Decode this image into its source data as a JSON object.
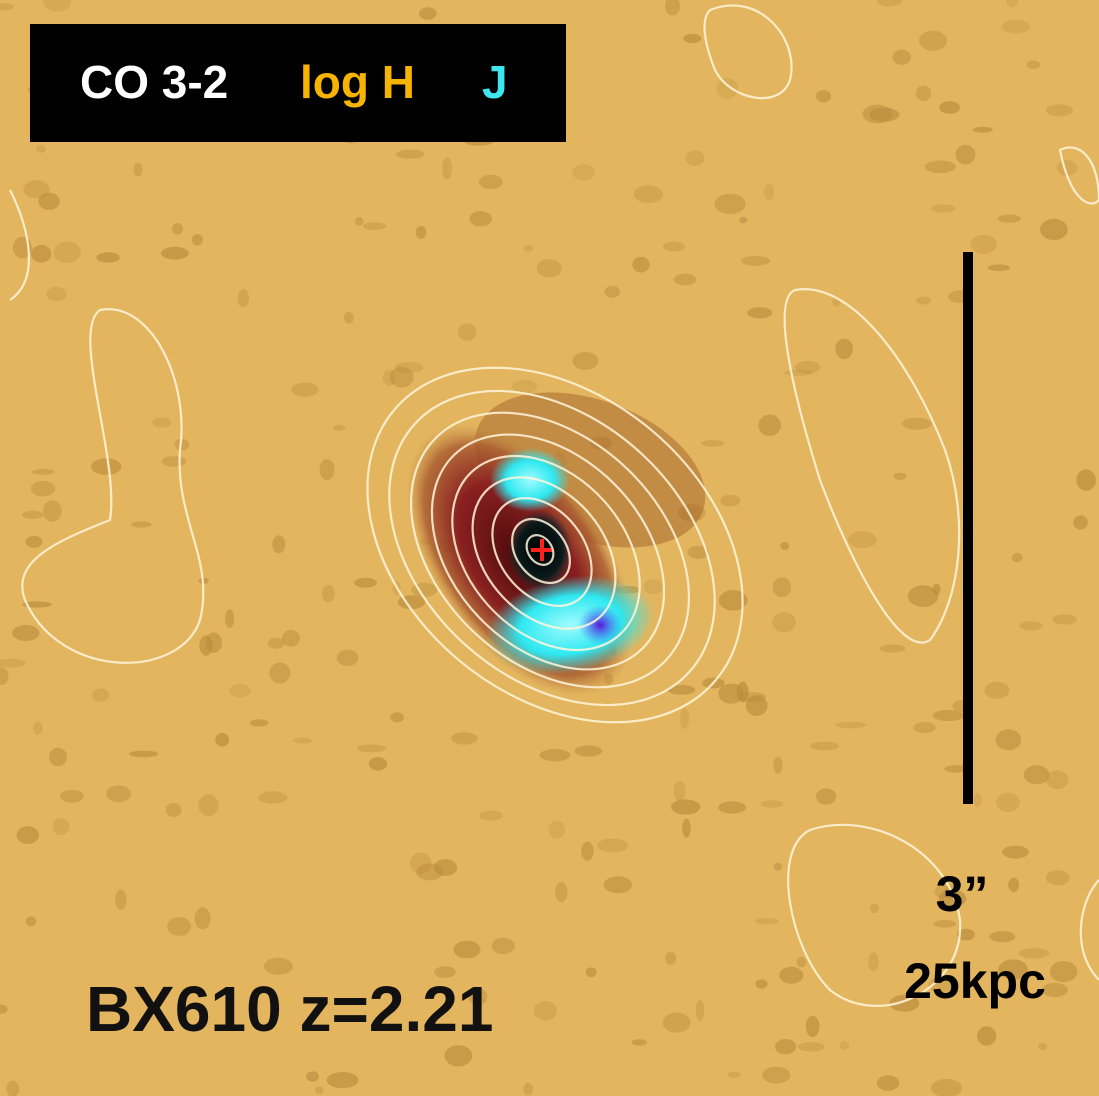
{
  "legend": {
    "items": [
      "CO 3-2",
      "log H",
      "J"
    ]
  },
  "scale_bar": {
    "angular": "3”",
    "physical": "25kpc"
  },
  "label": "BX610 z=2.21"
}
